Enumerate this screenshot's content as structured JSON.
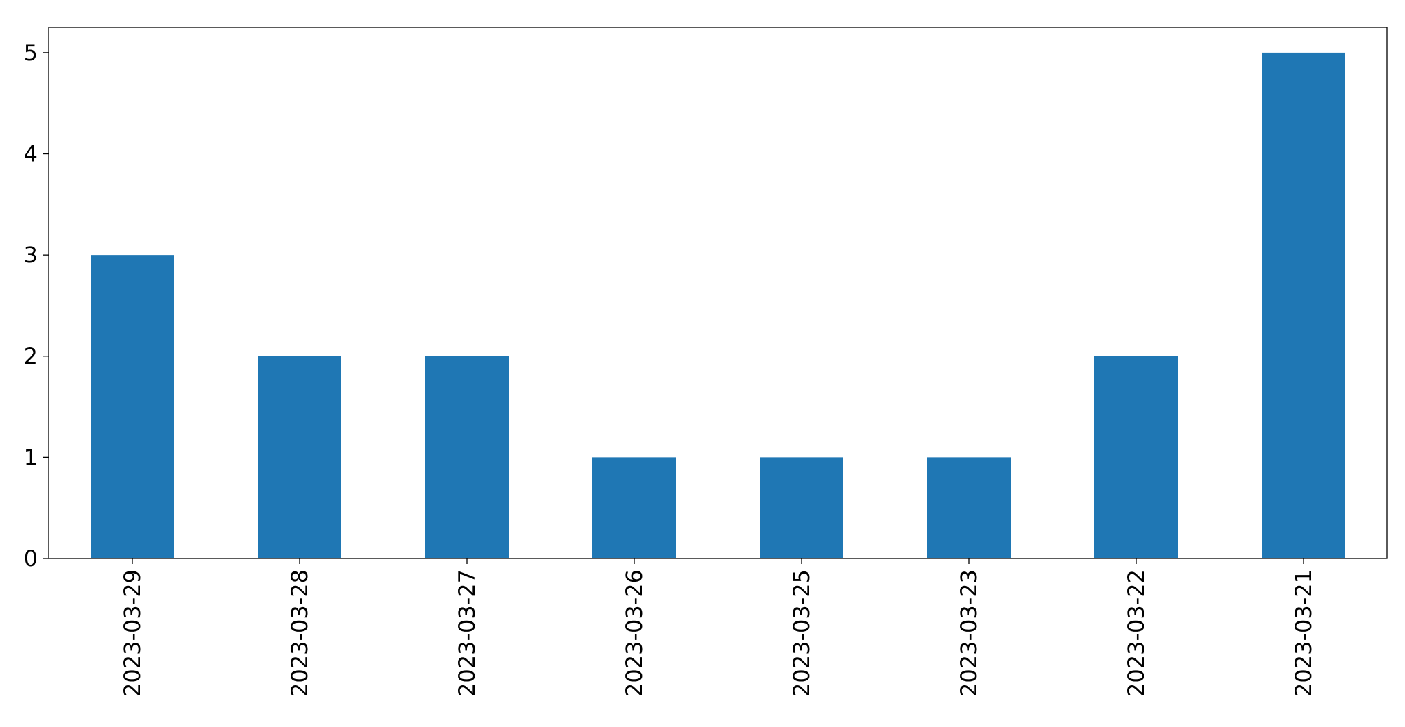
{
  "chart_data": {
    "type": "bar",
    "categories": [
      "2023-03-29",
      "2023-03-28",
      "2023-03-27",
      "2023-03-26",
      "2023-03-25",
      "2023-03-23",
      "2023-03-22",
      "2023-03-21"
    ],
    "values": [
      3,
      2,
      2,
      1,
      1,
      1,
      2,
      5
    ],
    "title": "",
    "xlabel": "",
    "ylabel": "",
    "ylim": [
      0,
      5.25
    ],
    "yticks": [
      0,
      1,
      2,
      3,
      4,
      5
    ],
    "grid": false,
    "bar_color": "#1f77b4",
    "axis_color": "#000000"
  }
}
